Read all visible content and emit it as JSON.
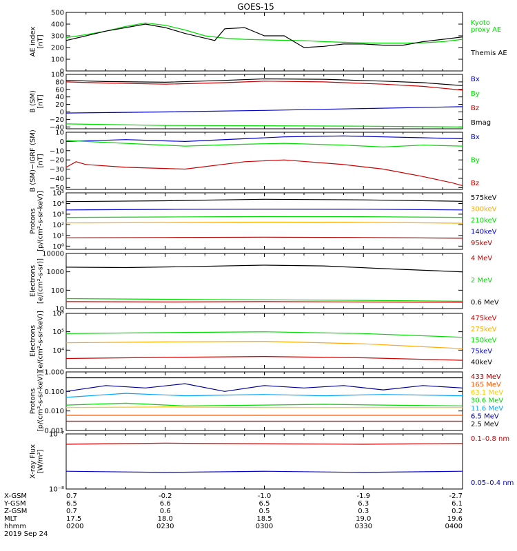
{
  "title": "GOES-15",
  "time": {
    "ticks": [
      "0200",
      "0230",
      "0300",
      "0330",
      "0400"
    ],
    "date": "2019 Sep 24",
    "ephem": [
      {
        "name": "X-GSM",
        "values": [
          "0.7",
          "-0.2",
          "-1.0",
          "-1.9",
          "-2.7"
        ]
      },
      {
        "name": "Y-GSM",
        "values": [
          "6.5",
          "6.6",
          "6.5",
          "6.3",
          "6.1"
        ]
      },
      {
        "name": "Z-GSM",
        "values": [
          "0.7",
          "0.6",
          "0.5",
          "0.3",
          "0.2"
        ]
      },
      {
        "name": "MLT",
        "values": [
          "17.5",
          "18.0",
          "18.5",
          "19.0",
          "19.6"
        ]
      },
      {
        "name": "hhmm",
        "values": [
          "0200",
          "0230",
          "0300",
          "0330",
          "0400"
        ]
      }
    ]
  },
  "chart_data": [
    {
      "type": "line",
      "ylabel": [
        "AE index",
        "[nT]"
      ],
      "ylim": [
        0,
        500
      ],
      "yticks": [
        {
          "v": 0,
          "t": "0"
        },
        {
          "v": 100,
          "t": "100"
        },
        {
          "v": 200,
          "t": "200"
        },
        {
          "v": 300,
          "t": "300"
        },
        {
          "v": 400,
          "t": "400"
        },
        {
          "v": 500,
          "t": "500"
        }
      ],
      "legend_layout": "free",
      "series": [
        {
          "name": "Kyoto proxy AE",
          "label_lines": [
            "Kyoto",
            "proxy AE"
          ],
          "color": "#00dd00",
          "x": [
            0,
            0.1,
            0.2,
            0.3,
            0.4,
            0.5,
            0.6,
            0.7,
            0.8,
            0.9,
            1.0,
            1.1,
            1.2,
            1.25,
            1.3,
            1.4,
            1.5,
            1.6,
            1.7,
            1.8,
            1.9,
            2.0
          ],
          "y": [
            285,
            310,
            340,
            380,
            410,
            390,
            350,
            300,
            280,
            270,
            265,
            262,
            258,
            255,
            250,
            245,
            240,
            238,
            238,
            240,
            250,
            270
          ]
        },
        {
          "name": "Themis AE",
          "label_lines": [
            "Themis AE"
          ],
          "color": "#000000",
          "x": [
            0,
            0.1,
            0.2,
            0.3,
            0.4,
            0.5,
            0.6,
            0.7,
            0.75,
            0.8,
            0.9,
            1.0,
            1.1,
            1.15,
            1.2,
            1.3,
            1.4,
            1.5,
            1.6,
            1.7,
            1.8,
            1.9,
            2.0
          ],
          "y": [
            260,
            300,
            340,
            370,
            400,
            370,
            320,
            280,
            260,
            360,
            370,
            300,
            300,
            250,
            200,
            210,
            230,
            230,
            220,
            220,
            250,
            270,
            290
          ]
        }
      ]
    },
    {
      "type": "line",
      "ylabel": [
        "B (SM)",
        "[nT]"
      ],
      "ylim": [
        -45,
        100
      ],
      "yticks": [
        {
          "v": -40,
          "t": "−40"
        },
        {
          "v": -20,
          "t": "−20"
        },
        {
          "v": 0,
          "t": "0"
        },
        {
          "v": 20,
          "t": "20"
        },
        {
          "v": 40,
          "t": "40"
        },
        {
          "v": 60,
          "t": "60"
        },
        {
          "v": 80,
          "t": "80"
        },
        {
          "v": 100,
          "t": "100"
        }
      ],
      "series": [
        {
          "name": "Bx",
          "color": "#0000cc",
          "x": [
            0,
            0.5,
            1,
            1.5,
            2
          ],
          "y": [
            -3,
            0,
            4,
            9,
            14
          ]
        },
        {
          "name": "By",
          "color": "#00dd00",
          "x": [
            0,
            0.5,
            1,
            1.5,
            2
          ],
          "y": [
            -32,
            -36,
            -37,
            -38,
            -40
          ]
        },
        {
          "name": "Bz",
          "color": "#cc0000",
          "x": [
            0,
            0.2,
            0.5,
            0.8,
            1.0,
            1.3,
            1.6,
            1.8,
            2.0
          ],
          "y": [
            80,
            77,
            74,
            78,
            82,
            80,
            74,
            68,
            58
          ]
        },
        {
          "name": "Bmag",
          "color": "#000000",
          "x": [
            0,
            0.2,
            0.5,
            0.8,
            1.0,
            1.3,
            1.6,
            1.8,
            2.0
          ],
          "y": [
            84,
            81,
            79,
            84,
            88,
            87,
            82,
            78,
            70
          ]
        }
      ]
    },
    {
      "type": "line",
      "ylabel": [
        "B (SM)−IGRF (SM)",
        "[nT]"
      ],
      "ylim": [
        -52,
        10
      ],
      "yticks": [
        {
          "v": -50,
          "t": "−50"
        },
        {
          "v": -40,
          "t": "−40"
        },
        {
          "v": -30,
          "t": "−30"
        },
        {
          "v": -20,
          "t": "−20"
        },
        {
          "v": -10,
          "t": "−10"
        },
        {
          "v": 0,
          "t": "0"
        },
        {
          "v": 10,
          "t": "10"
        }
      ],
      "series": [
        {
          "name": "Bx",
          "color": "#0000cc",
          "x": [
            0,
            0.3,
            0.6,
            0.9,
            1.1,
            1.4,
            1.6,
            1.8,
            2.0
          ],
          "y": [
            0,
            2,
            0,
            3,
            5,
            6,
            5,
            4,
            3
          ]
        },
        {
          "name": "By",
          "color": "#00dd00",
          "x": [
            0,
            0.3,
            0.6,
            0.9,
            1.1,
            1.4,
            1.6,
            1.8,
            2.0
          ],
          "y": [
            1,
            -2,
            -5,
            -3,
            -2,
            -4,
            -6,
            -4,
            -5
          ]
        },
        {
          "name": "Bz",
          "color": "#cc0000",
          "x": [
            0,
            0.05,
            0.1,
            0.3,
            0.6,
            0.9,
            1.1,
            1.4,
            1.6,
            1.8,
            1.95,
            2.0
          ],
          "y": [
            -28,
            -22,
            -25,
            -28,
            -30,
            -22,
            -20,
            -25,
            -30,
            -38,
            -45,
            -48
          ]
        }
      ]
    },
    {
      "type": "line",
      "yscale": "log",
      "ylabel": [
        "Protons",
        "[p/(cm²-s-sr-keV)]"
      ],
      "ylim": [
        0.5,
        100000
      ],
      "yticks": [
        {
          "v": 1,
          "t": "10⁰"
        },
        {
          "v": 10,
          "t": "10¹"
        },
        {
          "v": 100,
          "t": "10²"
        },
        {
          "v": 1000,
          "t": "10³"
        },
        {
          "v": 10000,
          "t": "10⁴"
        },
        {
          "v": 100000,
          "t": "10⁵"
        }
      ],
      "series": [
        {
          "name": "575keV",
          "color": "#000000",
          "x": [
            0,
            0.5,
            1,
            1.5,
            2
          ],
          "y": [
            15000,
            18000,
            25000,
            22000,
            16000
          ]
        },
        {
          "name": "300keV",
          "color": "#ffaa00",
          "x": [
            0,
            0.5,
            1,
            1.5,
            2
          ],
          "y": [
            150,
            160,
            180,
            170,
            140
          ]
        },
        {
          "name": "210keV",
          "color": "#00dd00",
          "x": [
            0,
            0.5,
            1,
            1.5,
            2
          ],
          "y": [
            500,
            550,
            600,
            580,
            500
          ]
        },
        {
          "name": "140keV",
          "color": "#0000cc",
          "x": [
            0,
            0.5,
            1,
            1.5,
            2
          ],
          "y": [
            2500,
            2800,
            3000,
            2900,
            2500
          ]
        },
        {
          "name": "95keV",
          "color": "#aa0000",
          "x": [
            0,
            0.5,
            1,
            1.5,
            2
          ],
          "y": [
            6,
            6.5,
            7,
            6.5,
            5.5
          ]
        }
      ]
    },
    {
      "type": "line",
      "yscale": "log",
      "ylabel": [
        "Electrons",
        "[e/(cm²-s-sr)]"
      ],
      "ylim": [
        10,
        10000
      ],
      "yticks": [
        {
          "v": 10,
          "t": "10"
        },
        {
          "v": 100,
          "t": "100"
        },
        {
          "v": 1000,
          "t": "1000"
        },
        {
          "v": 10000,
          "t": "10000"
        }
      ],
      "series": [
        {
          "name": "4 MeV",
          "color": "#cc0000",
          "x": [
            0,
            0.5,
            1,
            1.5,
            2
          ],
          "y": [
            24,
            23,
            24,
            23,
            22
          ]
        },
        {
          "name": "2 MeV",
          "color": "#00dd00",
          "x": [
            0,
            0.5,
            1,
            1.5,
            2
          ],
          "y": [
            35,
            32,
            30,
            28,
            25
          ]
        },
        {
          "name": "0.6 MeV",
          "color": "#000000",
          "x": [
            0,
            0.3,
            0.6,
            1.0,
            1.3,
            1.6,
            2.0
          ],
          "y": [
            1800,
            1700,
            1900,
            2300,
            2100,
            1500,
            1000
          ]
        }
      ]
    },
    {
      "type": "line",
      "yscale": "log",
      "ylabel": [
        "Electrons",
        "[e/(cm²-s-sr-keV)]"
      ],
      "ylim": [
        1000,
        1000000
      ],
      "yticks": [
        {
          "v": 10000,
          "t": "10⁴"
        },
        {
          "v": 100000,
          "t": "10⁵"
        },
        {
          "v": 1000000,
          "t": "10⁶"
        }
      ],
      "series": [
        {
          "name": "475keV",
          "color": "#cc0000",
          "x": [
            0,
            0.5,
            1,
            1.5,
            2
          ],
          "y": [
            3500,
            4000,
            4500,
            3800,
            2800
          ]
        },
        {
          "name": "275keV",
          "color": "#ffaa00",
          "x": [
            0,
            0.5,
            1,
            1.5,
            2
          ],
          "y": [
            25000,
            28000,
            30000,
            22000,
            12000
          ]
        },
        {
          "name": "150keV",
          "color": "#00dd00",
          "x": [
            0,
            0.5,
            1,
            1.5,
            2
          ],
          "y": [
            80000,
            90000,
            100000,
            80000,
            50000
          ]
        },
        {
          "name": "75keV",
          "color": "#0000cc",
          "x": [],
          "y": []
        },
        {
          "name": "40keV",
          "color": "#000000",
          "x": [],
          "y": []
        }
      ]
    },
    {
      "type": "line",
      "yscale": "log",
      "ylabel": [
        "Protons",
        "[p/(cm²-s-sr-keV)]"
      ],
      "ylim": [
        0.001,
        1
      ],
      "yticks": [
        {
          "v": 0.001,
          "t": "0.001"
        },
        {
          "v": 0.01,
          "t": "0.010"
        },
        {
          "v": 0.1,
          "t": "0.100"
        },
        {
          "v": 1,
          "t": "1.000"
        }
      ],
      "series": [
        {
          "name": "433 MeV",
          "color": "#aa0000",
          "x": [
            0,
            0.5,
            1,
            1.5,
            2
          ],
          "y": [
            0.003,
            0.003,
            0.003,
            0.003,
            0.003
          ]
        },
        {
          "name": "165 MeV",
          "color": "#ff5500",
          "x": [
            0,
            0.5,
            1,
            1.5,
            2
          ],
          "y": [
            0.006,
            0.006,
            0.006,
            0.006,
            0.006
          ]
        },
        {
          "name": "63.1 MeV",
          "color": "#ffcc00",
          "x": [
            0,
            0.5,
            1,
            1.5,
            2
          ],
          "y": [
            0.015,
            0.016,
            0.015,
            0.015,
            0.015
          ]
        },
        {
          "name": "30.6 MeV",
          "color": "#00dd00",
          "x": [
            0,
            0.3,
            0.6,
            1,
            1.3,
            1.6,
            2
          ],
          "y": [
            0.02,
            0.025,
            0.018,
            0.02,
            0.022,
            0.02,
            0.018
          ]
        },
        {
          "name": "11.6 MeV",
          "color": "#00aaff",
          "x": [
            0,
            0.3,
            0.6,
            1,
            1.3,
            1.6,
            2
          ],
          "y": [
            0.05,
            0.08,
            0.06,
            0.07,
            0.06,
            0.07,
            0.06
          ]
        },
        {
          "name": "6.5 MeV",
          "color": "#000099",
          "x": [
            0,
            0.2,
            0.4,
            0.6,
            0.8,
            1,
            1.2,
            1.4,
            1.6,
            1.8,
            2
          ],
          "y": [
            0.1,
            0.2,
            0.15,
            0.25,
            0.1,
            0.2,
            0.15,
            0.2,
            0.12,
            0.2,
            0.15
          ]
        },
        {
          "name": "2.5 MeV",
          "color": "#000000",
          "x": [
            0,
            0.5,
            1,
            1.5,
            2
          ],
          "y": [
            0.5,
            0.5,
            0.5,
            0.5,
            0.5
          ]
        }
      ]
    },
    {
      "type": "line",
      "yscale": "log",
      "ylabel": [
        "X-ray Flux",
        "[W/m²]"
      ],
      "ylim": [
        1e-08,
        1e-07
      ],
      "yticks": [
        {
          "v": 1e-08,
          "t": "10⁻⁸"
        },
        {
          "v": 1e-07,
          "t": "10⁻⁷"
        }
      ],
      "series": [
        {
          "name": "0.1–0.8 nm",
          "color": "#cc0000",
          "x": [
            0,
            0.5,
            1,
            1.5,
            2
          ],
          "y": [
            6.5e-08,
            6.8e-08,
            6.6e-08,
            6.5e-08,
            6.7e-08
          ]
        },
        {
          "name": "0.05–0.4 nm",
          "color": "#0000cc",
          "x": [
            0,
            0.5,
            1,
            1.5,
            2
          ],
          "y": [
            2.1e-08,
            2e-08,
            2.1e-08,
            2e-08,
            2.1e-08
          ]
        }
      ]
    }
  ]
}
